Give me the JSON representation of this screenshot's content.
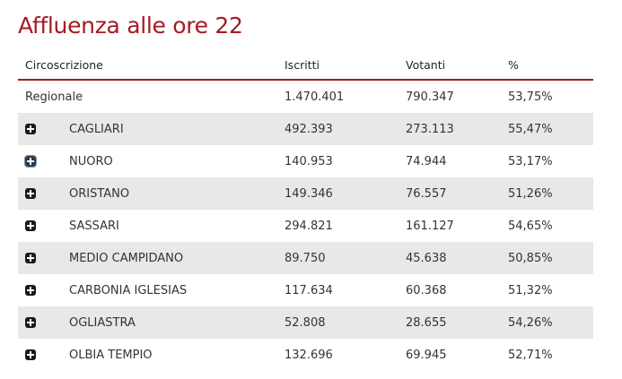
{
  "title": "Affluenza alle ore 22",
  "headers": {
    "circoscrizione": "Circoscrizione",
    "iscritti": "Iscritti",
    "votanti": "Votanti",
    "pct": "%"
  },
  "regionale": {
    "name": "Regionale",
    "iscritti": "1.470.401",
    "votanti": "790.347",
    "pct": "53,75%"
  },
  "rows": [
    {
      "name": "CAGLIARI",
      "iscritti": "492.393",
      "votanti": "273.113",
      "pct": "55,47%"
    },
    {
      "name": "NUORO",
      "iscritti": "140.953",
      "votanti": "74.944",
      "pct": "53,17%"
    },
    {
      "name": "ORISTANO",
      "iscritti": "149.346",
      "votanti": "76.557",
      "pct": "51,26%"
    },
    {
      "name": "SASSARI",
      "iscritti": "294.821",
      "votanti": "161.127",
      "pct": "54,65%"
    },
    {
      "name": "MEDIO CAMPIDANO",
      "iscritti": "89.750",
      "votanti": "45.638",
      "pct": "50,85%"
    },
    {
      "name": "CARBONIA IGLESIAS",
      "iscritti": "117.634",
      "votanti": "60.368",
      "pct": "51,32%"
    },
    {
      "name": "OGLIASTRA",
      "iscritti": "52.808",
      "votanti": "28.655",
      "pct": "54,26%"
    },
    {
      "name": "OLBIA TEMPIO",
      "iscritti": "132.696",
      "votanti": "69.945",
      "pct": "52,71%"
    }
  ],
  "colors": {
    "accent": "#a31b23",
    "row_shade": "#e8e8e8"
  },
  "icons": {
    "expand": "plus-square-icon"
  }
}
